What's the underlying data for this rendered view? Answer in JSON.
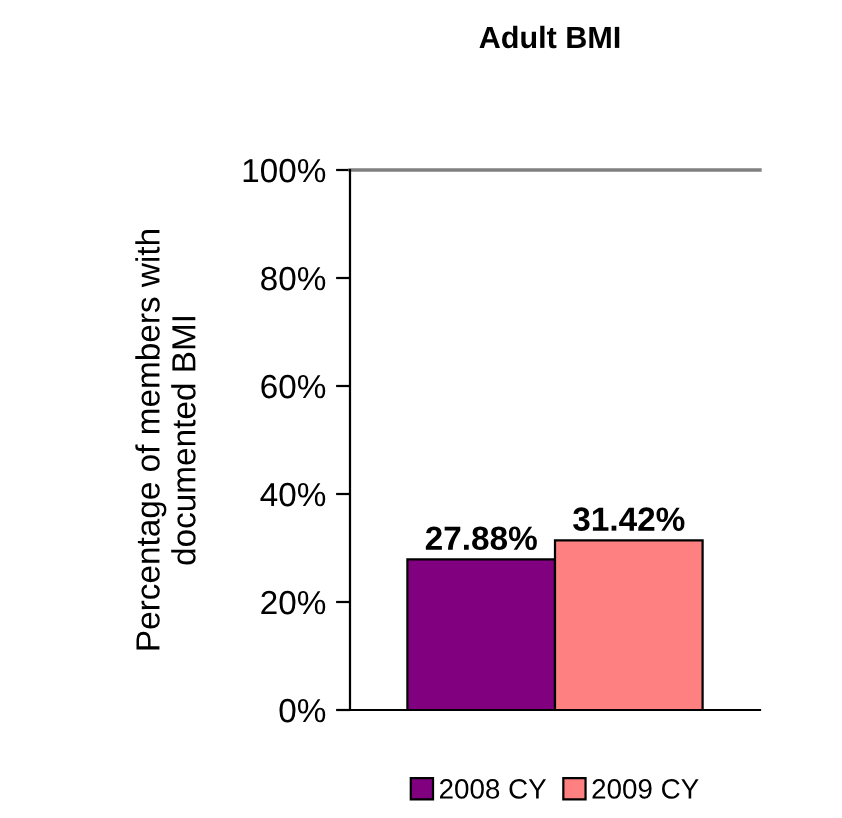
{
  "chart_data": {
    "type": "bar",
    "title": "Adult BMI",
    "ylabel": "Percentage of members with\ndocumented BMI",
    "categories": [
      null
    ],
    "series": [
      {
        "name": "2008 CY",
        "color": "#800080",
        "values": [
          27.88
        ],
        "value_labels": [
          "27.88%"
        ]
      },
      {
        "name": "2009 CY",
        "color": "#ff8080",
        "values": [
          31.42
        ],
        "value_labels": [
          "31.42%"
        ]
      }
    ],
    "ylim": [
      0,
      100
    ],
    "yticks": [
      {
        "value": 0,
        "label": "0%"
      },
      {
        "value": 20,
        "label": "20%"
      },
      {
        "value": 40,
        "label": "40%"
      },
      {
        "value": 60,
        "label": "60%"
      },
      {
        "value": 80,
        "label": "80%"
      },
      {
        "value": 100,
        "label": "100%"
      }
    ],
    "ref_lines": [
      {
        "axis": "y",
        "value": 100,
        "color": "#808080"
      }
    ],
    "grid": false,
    "legend": "bottom"
  }
}
